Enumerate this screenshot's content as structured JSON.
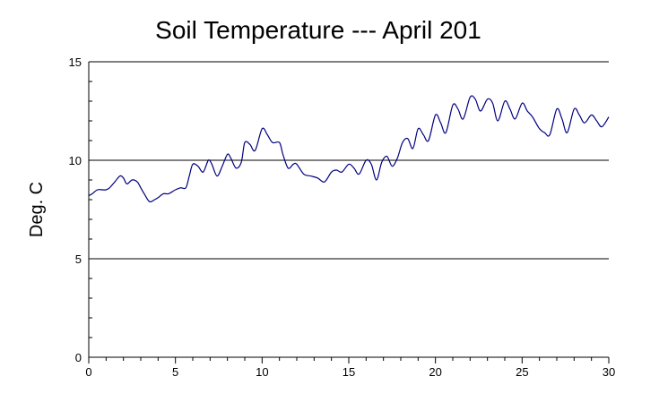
{
  "chart_data": {
    "type": "line",
    "title": "Soil Temperature --- April 201",
    "xlabel": "",
    "ylabel": "Deg. C",
    "xlim": [
      0,
      30
    ],
    "ylim": [
      0,
      15
    ],
    "x_ticks": [
      "0",
      "5",
      "10",
      "15",
      "20",
      "25",
      "30"
    ],
    "y_ticks": [
      "0",
      "5",
      "10",
      "15"
    ],
    "grid": "horizontal",
    "line_color": "#000080",
    "series": [
      {
        "x": [
          0,
          0.2,
          0.5,
          0.8,
          1.0,
          1.2,
          1.5,
          1.8,
          2.0,
          2.2,
          2.5,
          2.8,
          3.0,
          3.2,
          3.5,
          3.8,
          4.0,
          4.3,
          4.6,
          5.0,
          5.3,
          5.6,
          5.8,
          6.0,
          6.3,
          6.6,
          6.9,
          7.1,
          7.4,
          7.7,
          8.0,
          8.2,
          8.5,
          8.8,
          9.0,
          9.3,
          9.6,
          10.0,
          10.3,
          10.6,
          11.0,
          11.2,
          11.5,
          11.8,
          12.0,
          12.4,
          12.8,
          13.2,
          13.6,
          14.0,
          14.3,
          14.6,
          15.0,
          15.3,
          15.6,
          16.0,
          16.3,
          16.6,
          16.9,
          17.2,
          17.5,
          17.8,
          18.1,
          18.4,
          18.7,
          19.0,
          19.3,
          19.6,
          20.0,
          20.3,
          20.6,
          21.0,
          21.3,
          21.6,
          22.0,
          22.3,
          22.6,
          23.0,
          23.3,
          23.6,
          24.0,
          24.3,
          24.6,
          25.0,
          25.3,
          25.6,
          26.0,
          26.3,
          26.6,
          27.0,
          27.3,
          27.6,
          28.0,
          28.3,
          28.6,
          29.0,
          29.3,
          29.6,
          30.0
        ],
        "y": [
          8.2,
          8.3,
          8.5,
          8.5,
          8.5,
          8.6,
          8.9,
          9.2,
          9.1,
          8.8,
          9.0,
          8.9,
          8.6,
          8.3,
          7.9,
          8.0,
          8.1,
          8.3,
          8.3,
          8.5,
          8.6,
          8.6,
          9.2,
          9.8,
          9.7,
          9.4,
          10.0,
          9.8,
          9.2,
          9.7,
          10.3,
          10.1,
          9.6,
          9.9,
          10.9,
          10.8,
          10.5,
          11.6,
          11.3,
          10.9,
          10.9,
          10.3,
          9.6,
          9.8,
          9.8,
          9.3,
          9.2,
          9.1,
          8.9,
          9.4,
          9.5,
          9.4,
          9.8,
          9.6,
          9.3,
          10.0,
          9.8,
          9.0,
          9.9,
          10.2,
          9.7,
          10.1,
          10.9,
          11.1,
          10.6,
          11.6,
          11.3,
          11.0,
          12.3,
          11.9,
          11.4,
          12.8,
          12.6,
          12.1,
          13.2,
          13.1,
          12.5,
          13.1,
          12.9,
          12.0,
          13.0,
          12.6,
          12.1,
          12.9,
          12.5,
          12.2,
          11.6,
          11.4,
          11.3,
          12.6,
          12.1,
          11.4,
          12.6,
          12.3,
          11.9,
          12.3,
          12.0,
          11.7,
          12.2
        ]
      }
    ]
  }
}
